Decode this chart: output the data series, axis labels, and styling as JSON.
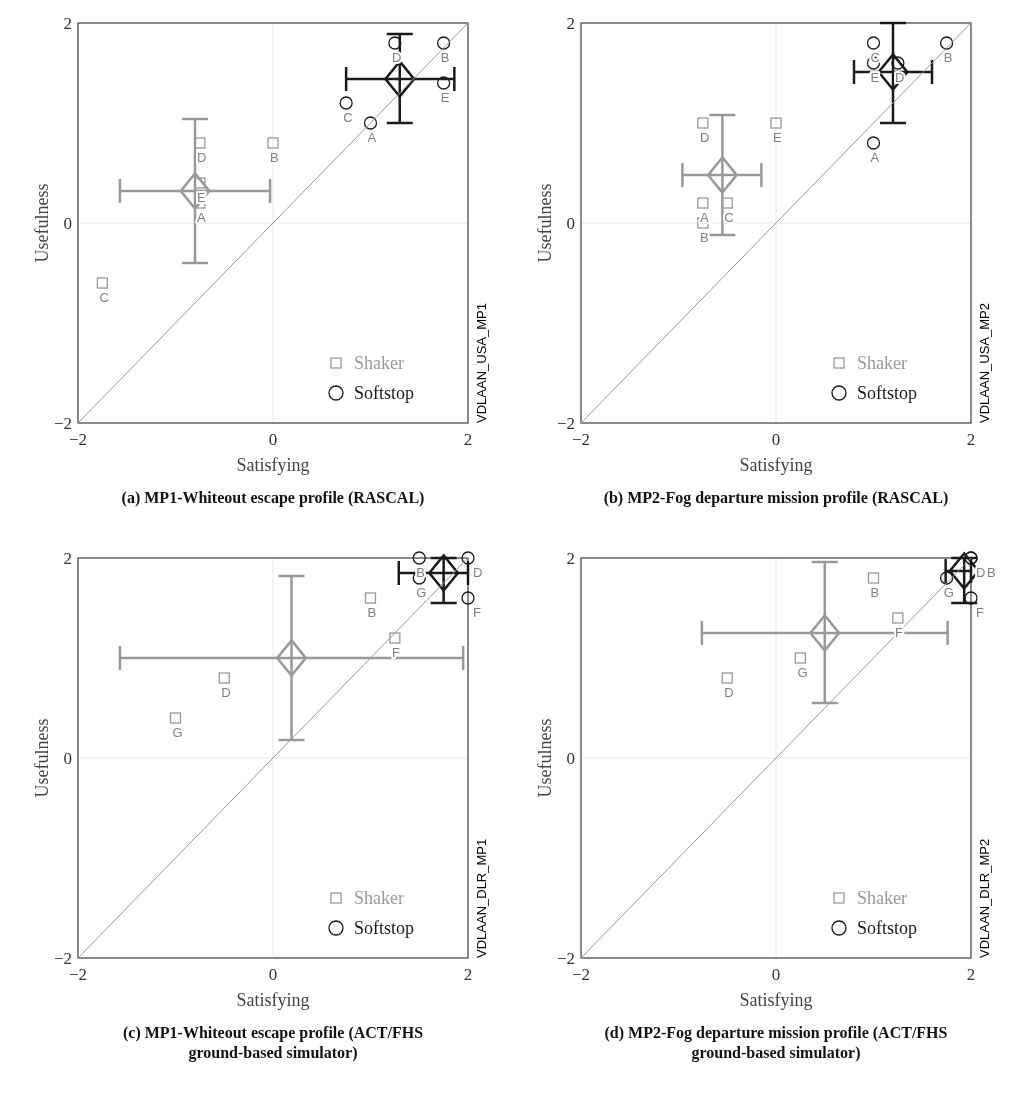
{
  "chart_data": [
    {
      "type": "scatter",
      "title": "(a) MP1-Whiteout escape profile (RASCAL)",
      "xlabel": "Satisfying",
      "ylabel": "Usefulness",
      "xlim": [
        -2,
        2
      ],
      "ylim": [
        -2,
        2
      ],
      "xticks": [
        -2,
        0,
        2
      ],
      "yticks": [
        -2,
        0,
        2
      ],
      "grid": true,
      "legend": "bottom right",
      "annotations": [
        "VDLAAN_USA_MP1"
      ],
      "series": [
        {
          "name": "Shaker",
          "marker": "square",
          "color": "#999999",
          "x": [
            -0.75,
            0,
            -0.75,
            -0.75,
            -1.75
          ],
          "values": [
            0.8,
            0.8,
            0.4,
            0.2,
            -0.6
          ],
          "value_labels": [
            "D",
            "B",
            "E",
            "A",
            "C"
          ]
        },
        {
          "name": "Softstop",
          "marker": "circle",
          "color": "#1a1a1a",
          "x": [
            1.25,
            1.75,
            1.75,
            0.75,
            1.0
          ],
          "values": [
            1.8,
            1.8,
            1.4,
            1.2,
            1.0
          ],
          "value_labels": [
            "D",
            "B",
            "E",
            "C",
            "A"
          ]
        },
        {
          "type": "scatter",
          "marker": "diamond",
          "color": "#999999",
          "x": [
            -0.8
          ],
          "values": [
            0.32
          ],
          "xerrors": [
            [
              -1.57,
              -0.03
            ]
          ],
          "errors": [
            [
              -0.4,
              1.04
            ]
          ]
        },
        {
          "type": "scatter",
          "marker": "diamond",
          "color": "#1a1a1a",
          "x": [
            1.3
          ],
          "values": [
            1.44
          ],
          "xerrors": [
            [
              0.75,
              1.86
            ]
          ],
          "errors": [
            [
              1.0,
              1.89
            ]
          ]
        },
        {
          "type": "line",
          "color": "#999999",
          "x": [
            -2,
            2
          ],
          "values": [
            -2,
            2
          ]
        }
      ]
    },
    {
      "type": "scatter",
      "title": "(b) MP2-Fog departure mission profile (RASCAL)",
      "xlabel": "Satisfying",
      "ylabel": "Usefulness",
      "xlim": [
        -2,
        2
      ],
      "ylim": [
        -2,
        2
      ],
      "xticks": [
        -2,
        0,
        2
      ],
      "yticks": [
        -2,
        0,
        2
      ],
      "grid": true,
      "legend": "bottom right",
      "annotations": [
        "VDLAAN_USA_MP2"
      ],
      "series": [
        {
          "name": "Shaker",
          "marker": "square",
          "color": "#999999",
          "x": [
            -0.75,
            0,
            -0.75,
            -0.5,
            -0.75
          ],
          "values": [
            1.0,
            1.0,
            0.2,
            0.2,
            0
          ],
          "value_labels": [
            "D",
            "E",
            "A",
            "C",
            "B"
          ]
        },
        {
          "name": "Softstop",
          "marker": "circle",
          "color": "#1a1a1a",
          "x": [
            1.0,
            1.0,
            1.25,
            1.75,
            1.0
          ],
          "values": [
            1.8,
            1.6,
            1.6,
            1.8,
            0.8
          ],
          "value_labels": [
            "C",
            "E",
            "D",
            "B",
            "A"
          ]
        },
        {
          "type": "scatter",
          "marker": "diamond",
          "color": "#999999",
          "x": [
            -0.55
          ],
          "values": [
            0.48
          ],
          "xerrors": [
            [
              -0.96,
              -0.15
            ]
          ],
          "errors": [
            [
              -0.12,
              1.08
            ]
          ]
        },
        {
          "type": "scatter",
          "marker": "diamond",
          "color": "#1a1a1a",
          "x": [
            1.2
          ],
          "values": [
            1.51
          ],
          "xerrors": [
            [
              0.8,
              1.6
            ]
          ],
          "errors": [
            [
              1.0,
              2.0
            ]
          ]
        },
        {
          "type": "line",
          "color": "#999999",
          "x": [
            -2,
            2
          ],
          "values": [
            -2,
            2
          ]
        }
      ]
    },
    {
      "type": "scatter",
      "title": "(c) MP1-Whiteout escape profile (ACT/FHS ground-based simulator)",
      "xlabel": "Satisfying",
      "ylabel": "Usefulness",
      "xlim": [
        -2,
        2
      ],
      "ylim": [
        -2,
        2
      ],
      "xticks": [
        -2,
        0,
        2
      ],
      "yticks": [
        -2,
        0,
        2
      ],
      "grid": true,
      "legend": "bottom right",
      "annotations": [
        "VDLAAN_DLR_MP1"
      ],
      "series": [
        {
          "name": "Shaker",
          "marker": "square",
          "color": "#999999",
          "x": [
            1.0,
            1.25,
            -0.5,
            -1.0
          ],
          "values": [
            1.6,
            1.2,
            0.8,
            0.4
          ],
          "value_labels": [
            "B",
            "F",
            "D",
            "G"
          ]
        },
        {
          "name": "Softstop",
          "marker": "circle",
          "color": "#1a1a1a",
          "x": [
            1.5,
            2.0,
            1.5,
            2.0
          ],
          "values": [
            2.0,
            2.0,
            1.8,
            1.6
          ],
          "value_labels": [
            "B",
            "D",
            "G",
            "F"
          ]
        },
        {
          "type": "scatter",
          "marker": "diamond",
          "color": "#999999",
          "x": [
            0.19
          ],
          "values": [
            1.0
          ],
          "xerrors": [
            [
              -1.57,
              1.95
            ]
          ],
          "errors": [
            [
              0.18,
              1.82
            ]
          ]
        },
        {
          "type": "scatter",
          "marker": "diamond",
          "color": "#1a1a1a",
          "x": [
            1.75
          ],
          "values": [
            1.85
          ],
          "xerrors": [
            [
              1.29,
              2.0
            ]
          ],
          "errors": [
            [
              1.55,
              2.0
            ]
          ]
        },
        {
          "type": "line",
          "color": "#999999",
          "x": [
            -2,
            2
          ],
          "values": [
            -2,
            2
          ]
        }
      ]
    },
    {
      "type": "scatter",
      "title": "(d) MP2-Fog departure mission profile (ACT/FHS ground-based simulator)",
      "xlabel": "Satisfying",
      "ylabel": "Usefulness",
      "xlim": [
        -2,
        2
      ],
      "ylim": [
        -2,
        2
      ],
      "xticks": [
        -2,
        0,
        2
      ],
      "yticks": [
        -2,
        0,
        2
      ],
      "grid": true,
      "legend": "bottom right",
      "annotations": [
        "VDLAAN_DLR_MP2"
      ],
      "series": [
        {
          "name": "Shaker",
          "marker": "square",
          "color": "#999999",
          "x": [
            1.0,
            1.25,
            0.25,
            -0.5
          ],
          "values": [
            1.8,
            1.4,
            1.0,
            0.8
          ],
          "value_labels": [
            "B",
            "F",
            "G",
            "D"
          ]
        },
        {
          "name": "Softstop",
          "marker": "circle",
          "color": "#1a1a1a",
          "x": [
            2.0,
            2.0,
            1.75,
            2.0
          ],
          "values": [
            2.0,
            2.0,
            1.8,
            1.6
          ],
          "value_labels": [
            "D",
            "B",
            "G",
            "F"
          ]
        },
        {
          "type": "scatter",
          "marker": "diamond",
          "color": "#999999",
          "x": [
            0.5
          ],
          "values": [
            1.25
          ],
          "xerrors": [
            [
              -0.76,
              1.76
            ]
          ],
          "errors": [
            [
              0.55,
              1.96
            ]
          ]
        },
        {
          "type": "scatter",
          "marker": "diamond",
          "color": "#1a1a1a",
          "x": [
            1.93
          ],
          "values": [
            1.87
          ],
          "xerrors": [
            [
              1.74,
              2.0
            ]
          ],
          "errors": [
            [
              1.55,
              2.0
            ]
          ]
        },
        {
          "type": "line",
          "color": "#999999",
          "x": [
            -2,
            2
          ],
          "values": [
            -2,
            2
          ]
        }
      ]
    }
  ]
}
